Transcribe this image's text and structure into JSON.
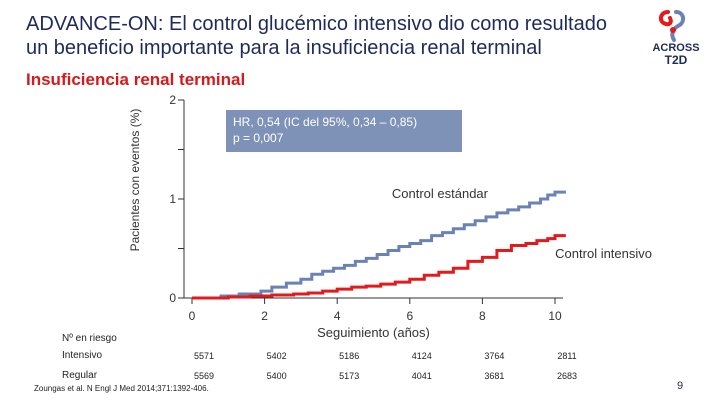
{
  "slide": {
    "title": "ADVANCE-ON: El control glucémico intensivo dio como resultado un beneficio importante para la insuficiencia renal terminal",
    "subtitle": "Insuficiencia renal terminal",
    "logo_text": "ACROSS",
    "logo_subtext": "T2D",
    "page_number": "9",
    "reference": "Zoungas et al. N Engl J Med 2014;371:1392-406."
  },
  "colors": {
    "standard": "#6b82b4",
    "intensive": "#e31a1c",
    "title": "#1e2a5a",
    "annotation_bg": "#7e92b8"
  },
  "annotation": {
    "line1": "HR, 0,54 (IC del 95%, 0,34 – 0,85)",
    "line2": "p = 0,007"
  },
  "risk_table": {
    "title": "Nº en riesgo",
    "rows": [
      {
        "label": "Intensivo",
        "values": [
          "5571",
          "5402",
          "5186",
          "4124",
          "3764",
          "2811"
        ]
      },
      {
        "label": "Regular",
        "values": [
          "5569",
          "5400",
          "5173",
          "4041",
          "3681",
          "2683"
        ]
      }
    ]
  },
  "chart_data": {
    "type": "line",
    "title": "Insuficiencia renal terminal",
    "xlabel": "Seguimiento (años)",
    "ylabel": "Pacientes con eventos (%)",
    "xlim": [
      0,
      10
    ],
    "ylim": [
      0,
      2
    ],
    "xticks": [
      "0",
      "2",
      "4",
      "6",
      "8",
      "10"
    ],
    "yticks": [
      "0",
      "1",
      "2"
    ],
    "series": [
      {
        "name": "Control estándar",
        "step": true,
        "x": [
          0,
          0.8,
          1.3,
          1.9,
          2.2,
          2.6,
          3.0,
          3.3,
          3.6,
          3.9,
          4.2,
          4.5,
          4.8,
          5.1,
          5.4,
          5.7,
          6.0,
          6.3,
          6.6,
          6.9,
          7.2,
          7.5,
          7.8,
          8.1,
          8.4,
          8.7,
          9.0,
          9.3,
          9.6,
          9.8,
          10.0,
          10.3
        ],
        "y": [
          0,
          0.02,
          0.04,
          0.07,
          0.11,
          0.15,
          0.19,
          0.24,
          0.27,
          0.3,
          0.33,
          0.37,
          0.4,
          0.44,
          0.48,
          0.52,
          0.55,
          0.58,
          0.63,
          0.66,
          0.7,
          0.74,
          0.78,
          0.82,
          0.86,
          0.89,
          0.92,
          0.96,
          1.0,
          1.04,
          1.07,
          1.07
        ]
      },
      {
        "name": "Control intensivo",
        "step": true,
        "x": [
          0,
          1.0,
          1.6,
          2.2,
          2.8,
          3.2,
          3.6,
          4.0,
          4.4,
          4.8,
          5.2,
          5.6,
          6.0,
          6.4,
          6.8,
          7.2,
          7.6,
          8.0,
          8.4,
          8.8,
          9.2,
          9.5,
          9.8,
          10.0,
          10.3
        ],
        "y": [
          0,
          0.01,
          0.02,
          0.03,
          0.04,
          0.05,
          0.07,
          0.09,
          0.11,
          0.12,
          0.14,
          0.16,
          0.19,
          0.23,
          0.26,
          0.3,
          0.37,
          0.41,
          0.48,
          0.53,
          0.55,
          0.58,
          0.6,
          0.63,
          0.63
        ]
      }
    ],
    "labels": {
      "standard": "Control estándar",
      "intensive": "Control intensivo"
    }
  }
}
